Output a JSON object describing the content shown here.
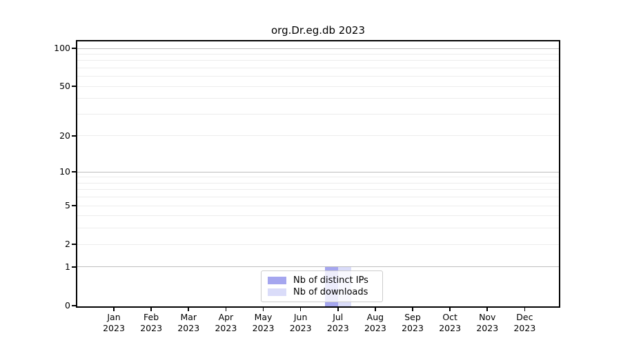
{
  "title": "org.Dr.eg.db 2023",
  "chart_data": {
    "type": "bar",
    "title": "org.Dr.eg.db 2023",
    "xlabel": "",
    "ylabel": "",
    "months": [
      "Jan",
      "Feb",
      "Mar",
      "Apr",
      "May",
      "Jun",
      "Jul",
      "Aug",
      "Sep",
      "Oct",
      "Nov",
      "Dec"
    ],
    "year": "2023",
    "categories": [
      "Jan 2023",
      "Feb 2023",
      "Mar 2023",
      "Apr 2023",
      "May 2023",
      "Jun 2023",
      "Jul 2023",
      "Aug 2023",
      "Sep 2023",
      "Oct 2023",
      "Nov 2023",
      "Dec 2023"
    ],
    "series": [
      {
        "name": "Nb of distinct IPs",
        "color": "#a5a6ef",
        "values": [
          0,
          0,
          0,
          0,
          0,
          0,
          1,
          0,
          0,
          0,
          0,
          0
        ]
      },
      {
        "name": "Nb of downloads",
        "color": "#dadcf9",
        "values": [
          0,
          0,
          0,
          0,
          0,
          0,
          1,
          0,
          0,
          0,
          0,
          0
        ]
      }
    ],
    "yscale": "log1p",
    "ylim": [
      0,
      100
    ],
    "y_ticks": [
      0,
      1,
      2,
      5,
      10,
      20,
      50,
      100
    ],
    "y_grid_major": [
      1,
      10,
      100
    ],
    "y_grid_minor": [
      2,
      3,
      4,
      5,
      6,
      7,
      8,
      9,
      20,
      30,
      40,
      50,
      60,
      70,
      80,
      90
    ],
    "grid": true,
    "legend_position": "bottom-center"
  },
  "colors": {
    "background": "#ffffff",
    "spine": "#000000",
    "grid_major": "#bdbdbd",
    "grid_minor": "#ececec",
    "legend_border": "#cccccc",
    "bar_distinct_ips": "#a5a6ef",
    "bar_downloads": "#dadcf9"
  }
}
